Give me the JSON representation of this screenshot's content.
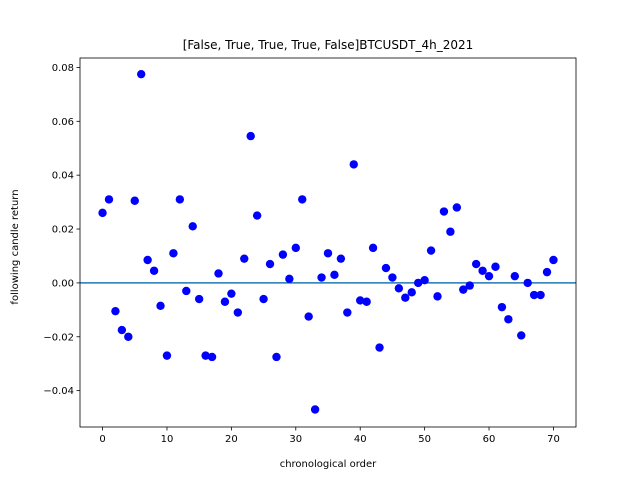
{
  "chart_data": {
    "type": "scatter",
    "title": "[False, True, True, True, False]BTCUSDT_4h_2021",
    "xlabel": "chronological order",
    "ylabel": "following candle return",
    "xlim": [
      -3.5,
      73.5
    ],
    "ylim": [
      -0.0535,
      0.0835
    ],
    "xticks": [
      0,
      10,
      20,
      30,
      40,
      50,
      60,
      70
    ],
    "xtick_labels": [
      "0",
      "10",
      "20",
      "30",
      "40",
      "50",
      "60",
      "70"
    ],
    "yticks": [
      -0.04,
      -0.02,
      0.0,
      0.02,
      0.04,
      0.06,
      0.08
    ],
    "ytick_labels": [
      "−0.04",
      "−0.02",
      "0.00",
      "0.02",
      "0.04",
      "0.06",
      "0.08"
    ],
    "grid": false,
    "reference_line": {
      "y": 0.0,
      "color": "#1f77b4"
    },
    "point_color": "#0000ff",
    "x": [
      0,
      1,
      2,
      3,
      4,
      5,
      6,
      7,
      8,
      9,
      10,
      11,
      12,
      13,
      14,
      15,
      16,
      17,
      18,
      19,
      20,
      21,
      22,
      23,
      24,
      25,
      26,
      27,
      28,
      29,
      30,
      31,
      32,
      33,
      34,
      35,
      36,
      37,
      38,
      39,
      40,
      41,
      42,
      43,
      44,
      45,
      46,
      47,
      48,
      49,
      50,
      51,
      52,
      53,
      54,
      55,
      56,
      57,
      58,
      59,
      60,
      61,
      62,
      63,
      64,
      65,
      66,
      67,
      68,
      69,
      70
    ],
    "y": [
      0.026,
      0.031,
      -0.0105,
      -0.0175,
      -0.02,
      0.0305,
      0.0775,
      0.0085,
      0.0045,
      -0.0085,
      -0.027,
      0.011,
      0.031,
      -0.003,
      0.021,
      -0.006,
      -0.027,
      -0.0275,
      0.0035,
      -0.007,
      -0.004,
      -0.011,
      0.009,
      0.0545,
      0.025,
      -0.006,
      0.007,
      -0.0275,
      0.0105,
      0.0015,
      0.013,
      0.031,
      -0.0125,
      -0.047,
      0.002,
      0.011,
      0.003,
      0.009,
      -0.011,
      0.044,
      -0.0065,
      -0.007,
      0.013,
      -0.024,
      0.0055,
      0.002,
      -0.002,
      -0.0055,
      -0.0035,
      0.0,
      0.001,
      0.012,
      -0.005,
      0.0265,
      0.019,
      0.028,
      -0.0025,
      -0.001,
      0.007,
      0.0045,
      0.0025,
      0.006,
      -0.009,
      -0.0135,
      0.0025,
      -0.0195,
      0.0,
      -0.0045,
      -0.0045,
      0.004,
      0.0085
    ]
  }
}
